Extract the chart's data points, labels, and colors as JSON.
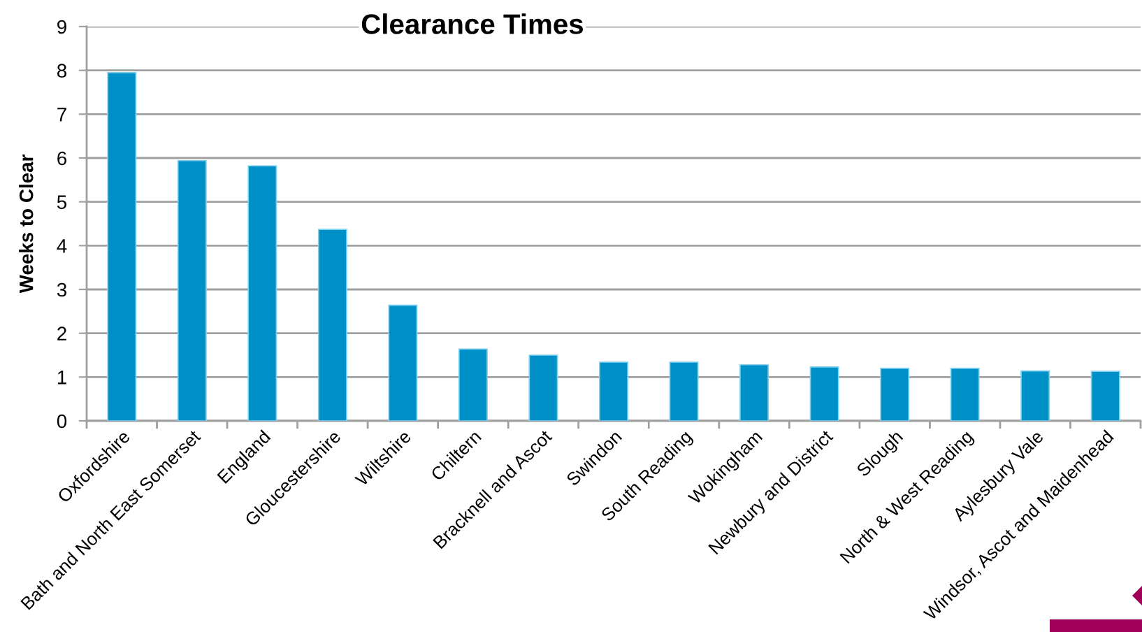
{
  "chart_data": {
    "type": "bar",
    "title": "Clearance Times",
    "ylabel": "Weeks to Clear",
    "categories": [
      "Oxfordshire",
      "Bath and North East Somerset",
      "England",
      "Gloucestershire",
      "Wiltshire",
      "Chiltern",
      "Bracknell and Ascot",
      "Swindon",
      "South Reading",
      "Wokingham",
      "Newbury and District",
      "Slough",
      "North & West Reading",
      "Aylesbury Vale",
      "Windsor, Ascot and Maidenhead"
    ],
    "values": [
      7.95,
      5.94,
      5.82,
      4.37,
      2.64,
      1.64,
      1.5,
      1.34,
      1.34,
      1.28,
      1.23,
      1.2,
      1.2,
      1.14,
      1.13
    ],
    "color": "#0090c8",
    "ylim": [
      0,
      9
    ],
    "yticks": [
      0,
      1,
      2,
      3,
      4,
      5,
      6,
      7,
      8,
      9
    ],
    "grid": "y"
  }
}
